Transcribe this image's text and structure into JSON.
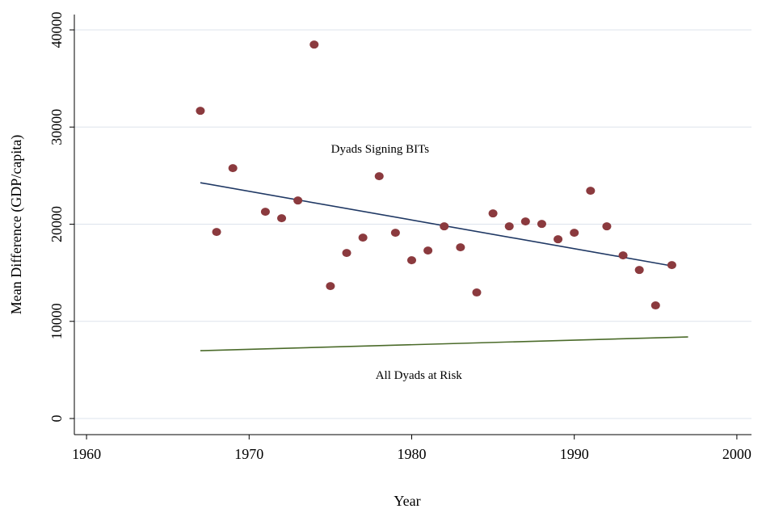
{
  "chart_data": {
    "type": "scatter",
    "xlabel": "Year",
    "ylabel": "Mean Difference (GDP/capita)",
    "xlim": [
      1959.25,
      2000.9
    ],
    "xticks": [
      1960,
      1970,
      1980,
      1990,
      2000
    ],
    "ylim": [
      -1660,
      41580
    ],
    "yticks": [
      0,
      10000,
      20000,
      30000,
      40000
    ],
    "grid": true,
    "points": {
      "color": "#8b3a3e",
      "x": [
        1967,
        1968,
        1969,
        1971,
        1972,
        1973,
        1974,
        1975,
        1976,
        1977,
        1978,
        1979,
        1980,
        1981,
        1982,
        1983,
        1984,
        1985,
        1986,
        1987,
        1988,
        1989,
        1990,
        1991,
        1992,
        1993,
        1994,
        1995,
        1996
      ],
      "values": [
        31670,
        19200,
        25770,
        21280,
        20615,
        22440,
        38490,
        13630,
        17040,
        18620,
        24940,
        19120,
        16290,
        17290,
        19780,
        17620,
        12970,
        21110,
        19780,
        20280,
        20030,
        18450,
        19120,
        23440,
        19780,
        16790,
        15290,
        11640,
        15790
      ]
    },
    "lines": [
      {
        "name": "Dyads Signing BITs",
        "color": "#1f3864",
        "x": [
          1967,
          1996
        ],
        "values": [
          24270,
          15710
        ]
      },
      {
        "name": "All Dyads at Risk",
        "color": "#4b6b2a",
        "x": [
          1967,
          1997
        ],
        "values": [
          6980,
          8400
        ]
      }
    ]
  }
}
